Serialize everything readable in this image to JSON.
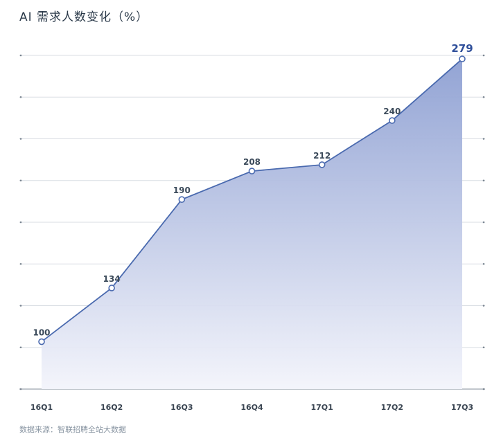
{
  "title": "AI 需求人数变化（%）",
  "source": "数据来源：智联招聘全站大数据",
  "colors": {
    "line": "#4a6aaf",
    "area_top": "#8d9fd2",
    "area_bottom": "#f3f4fb",
    "grid": "#d9dde3",
    "highlight": "#2f4f9a"
  },
  "chart_data": {
    "type": "area",
    "categories": [
      "16Q1",
      "16Q2",
      "16Q3",
      "16Q4",
      "17Q1",
      "17Q2",
      "17Q3"
    ],
    "values": [
      100,
      134,
      190,
      208,
      212,
      240,
      279
    ],
    "title": "AI 需求人数变化（%）",
    "xlabel": "",
    "ylabel": "",
    "ylim": [
      70,
      290
    ],
    "grid": true,
    "legend": "none",
    "highlight_last": true
  }
}
